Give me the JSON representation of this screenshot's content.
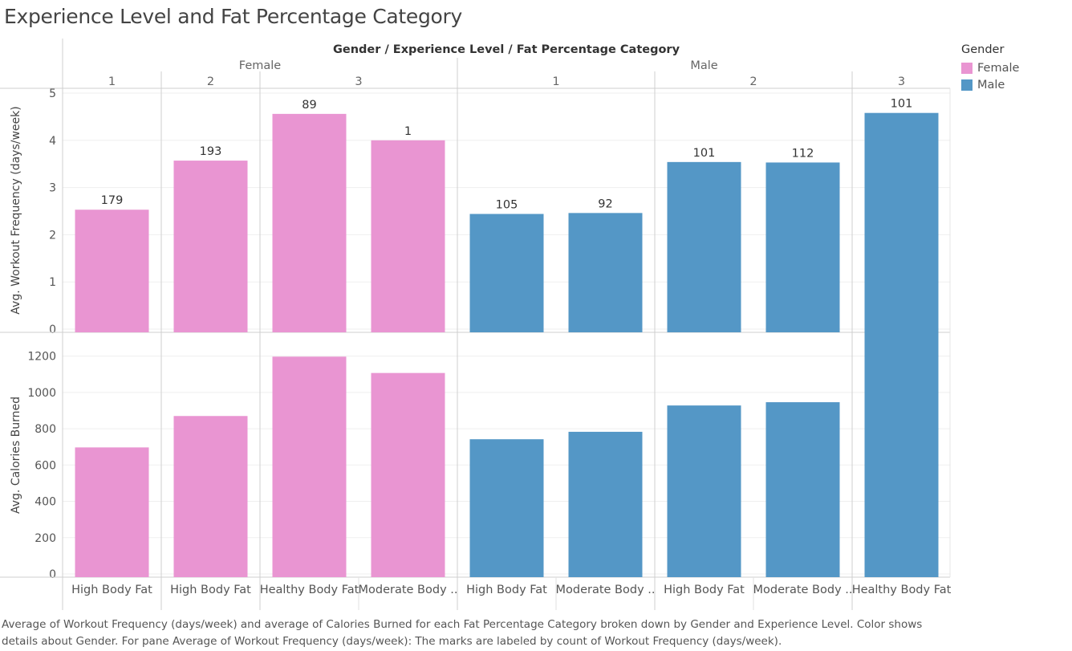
{
  "title": "Experience Level and Fat Percentage Category",
  "header": {
    "column_title": "Gender / Experience Level / Fat Percentage Category"
  },
  "legend": {
    "title": "Gender",
    "items": [
      {
        "label": "Female",
        "color": "#e995d2"
      },
      {
        "label": "Male",
        "color": "#5497c6"
      }
    ]
  },
  "caption": "Average of Workout Frequency (days/week) and average of Calories Burned for each Fat Percentage Category broken down by Gender and Experience Level.  Color shows details about Gender.  For pane Average of Workout Frequency (days/week):  The marks are labeled by count of Workout Frequency (days/week).",
  "chart_data": {
    "type": "bar",
    "genders": [
      "Female",
      "Male"
    ],
    "experience_groups": [
      {
        "gender": "Female",
        "level": "1",
        "categories": [
          "High Body Fat"
        ]
      },
      {
        "gender": "Female",
        "level": "2",
        "categories": [
          "High Body Fat"
        ]
      },
      {
        "gender": "Female",
        "level": "3",
        "categories": [
          "Healthy Body Fat",
          "Moderate Body .."
        ]
      },
      {
        "gender": "Male",
        "level": "1",
        "categories": [
          "High Body Fat",
          "Moderate Body .."
        ]
      },
      {
        "gender": "Male",
        "level": "2",
        "categories": [
          "High Body Fat",
          "Moderate Body .."
        ]
      },
      {
        "gender": "Male",
        "level": "3",
        "categories": [
          "Healthy Body Fat"
        ]
      }
    ],
    "bars": [
      {
        "gender": "Female",
        "level": "1",
        "category": "High Body Fat",
        "workout_freq": 2.53,
        "count_label": "179",
        "calories": 697
      },
      {
        "gender": "Female",
        "level": "2",
        "category": "High Body Fat",
        "workout_freq": 3.57,
        "count_label": "193",
        "calories": 870
      },
      {
        "gender": "Female",
        "level": "3",
        "category": "Healthy Body Fat",
        "workout_freq": 4.56,
        "count_label": "89",
        "calories": 1197
      },
      {
        "gender": "Female",
        "level": "3",
        "category": "Moderate Body ..",
        "workout_freq": 4.0,
        "count_label": "1",
        "calories": 1107
      },
      {
        "gender": "Male",
        "level": "1",
        "category": "High Body Fat",
        "workout_freq": 2.44,
        "count_label": "105",
        "calories": 742
      },
      {
        "gender": "Male",
        "level": "1",
        "category": "Moderate Body ..",
        "workout_freq": 2.46,
        "count_label": "92",
        "calories": 783
      },
      {
        "gender": "Male",
        "level": "2",
        "category": "High Body Fat",
        "workout_freq": 3.54,
        "count_label": "101",
        "calories": 928
      },
      {
        "gender": "Male",
        "level": "2",
        "category": "Moderate Body ..",
        "workout_freq": 3.53,
        "count_label": "112",
        "calories": 946
      },
      {
        "gender": "Male",
        "level": "3",
        "category": "Healthy Body Fat",
        "workout_freq": 4.58,
        "count_label": "101",
        "calories": 1335
      }
    ],
    "panes": [
      {
        "key": "workout_freq",
        "ylabel": "Avg. Workout Frequency (days/week)",
        "ylim": [
          0,
          5
        ],
        "ticks": [
          0,
          1,
          2,
          3,
          4,
          5
        ]
      },
      {
        "key": "calories",
        "ylabel": "Avg. Calories Burned",
        "ylim": [
          0,
          1300
        ],
        "ticks": [
          0,
          200,
          400,
          600,
          800,
          1000,
          1200
        ]
      }
    ],
    "grid": true,
    "legend_position": "right"
  }
}
